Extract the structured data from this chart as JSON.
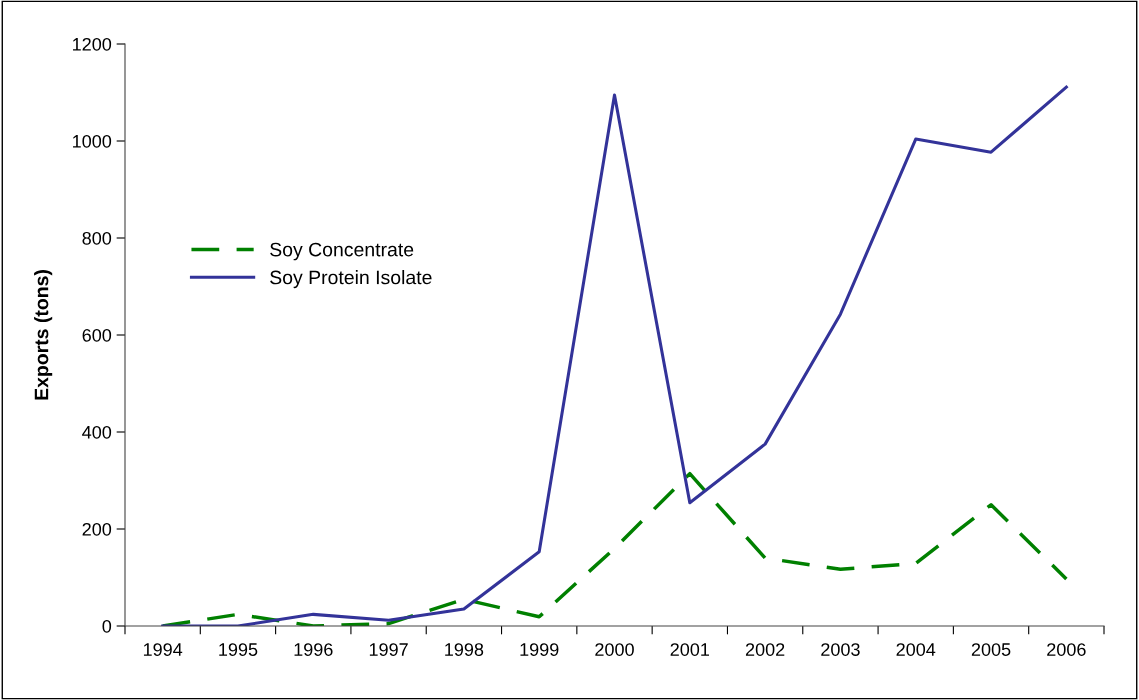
{
  "chart_data": {
    "type": "line",
    "ylabel": "Exports (tons)",
    "categories": [
      "1994",
      "1995",
      "1996",
      "1997",
      "1998",
      "1999",
      "2000",
      "2001",
      "2002",
      "2003",
      "2004",
      "2005",
      "2006"
    ],
    "series": [
      {
        "name": "Soy Concentrate",
        "color": "#008000",
        "line_style": "dashed",
        "values": [
          0,
          24,
          0,
          5,
          55,
          19,
          160,
          314,
          140,
          117,
          129,
          250,
          97
        ]
      },
      {
        "name": "Soy Protein Isolate",
        "color": "#333399",
        "line_style": "solid",
        "values": [
          0,
          0,
          24,
          12,
          35,
          153,
          1095,
          254,
          375,
          643,
          1004,
          977,
          1111
        ]
      }
    ],
    "ylim": [
      0,
      1200
    ],
    "yticks": [
      0,
      200,
      400,
      600,
      800,
      1000,
      1200
    ],
    "grid": false,
    "legend": "left",
    "marker": "none"
  }
}
